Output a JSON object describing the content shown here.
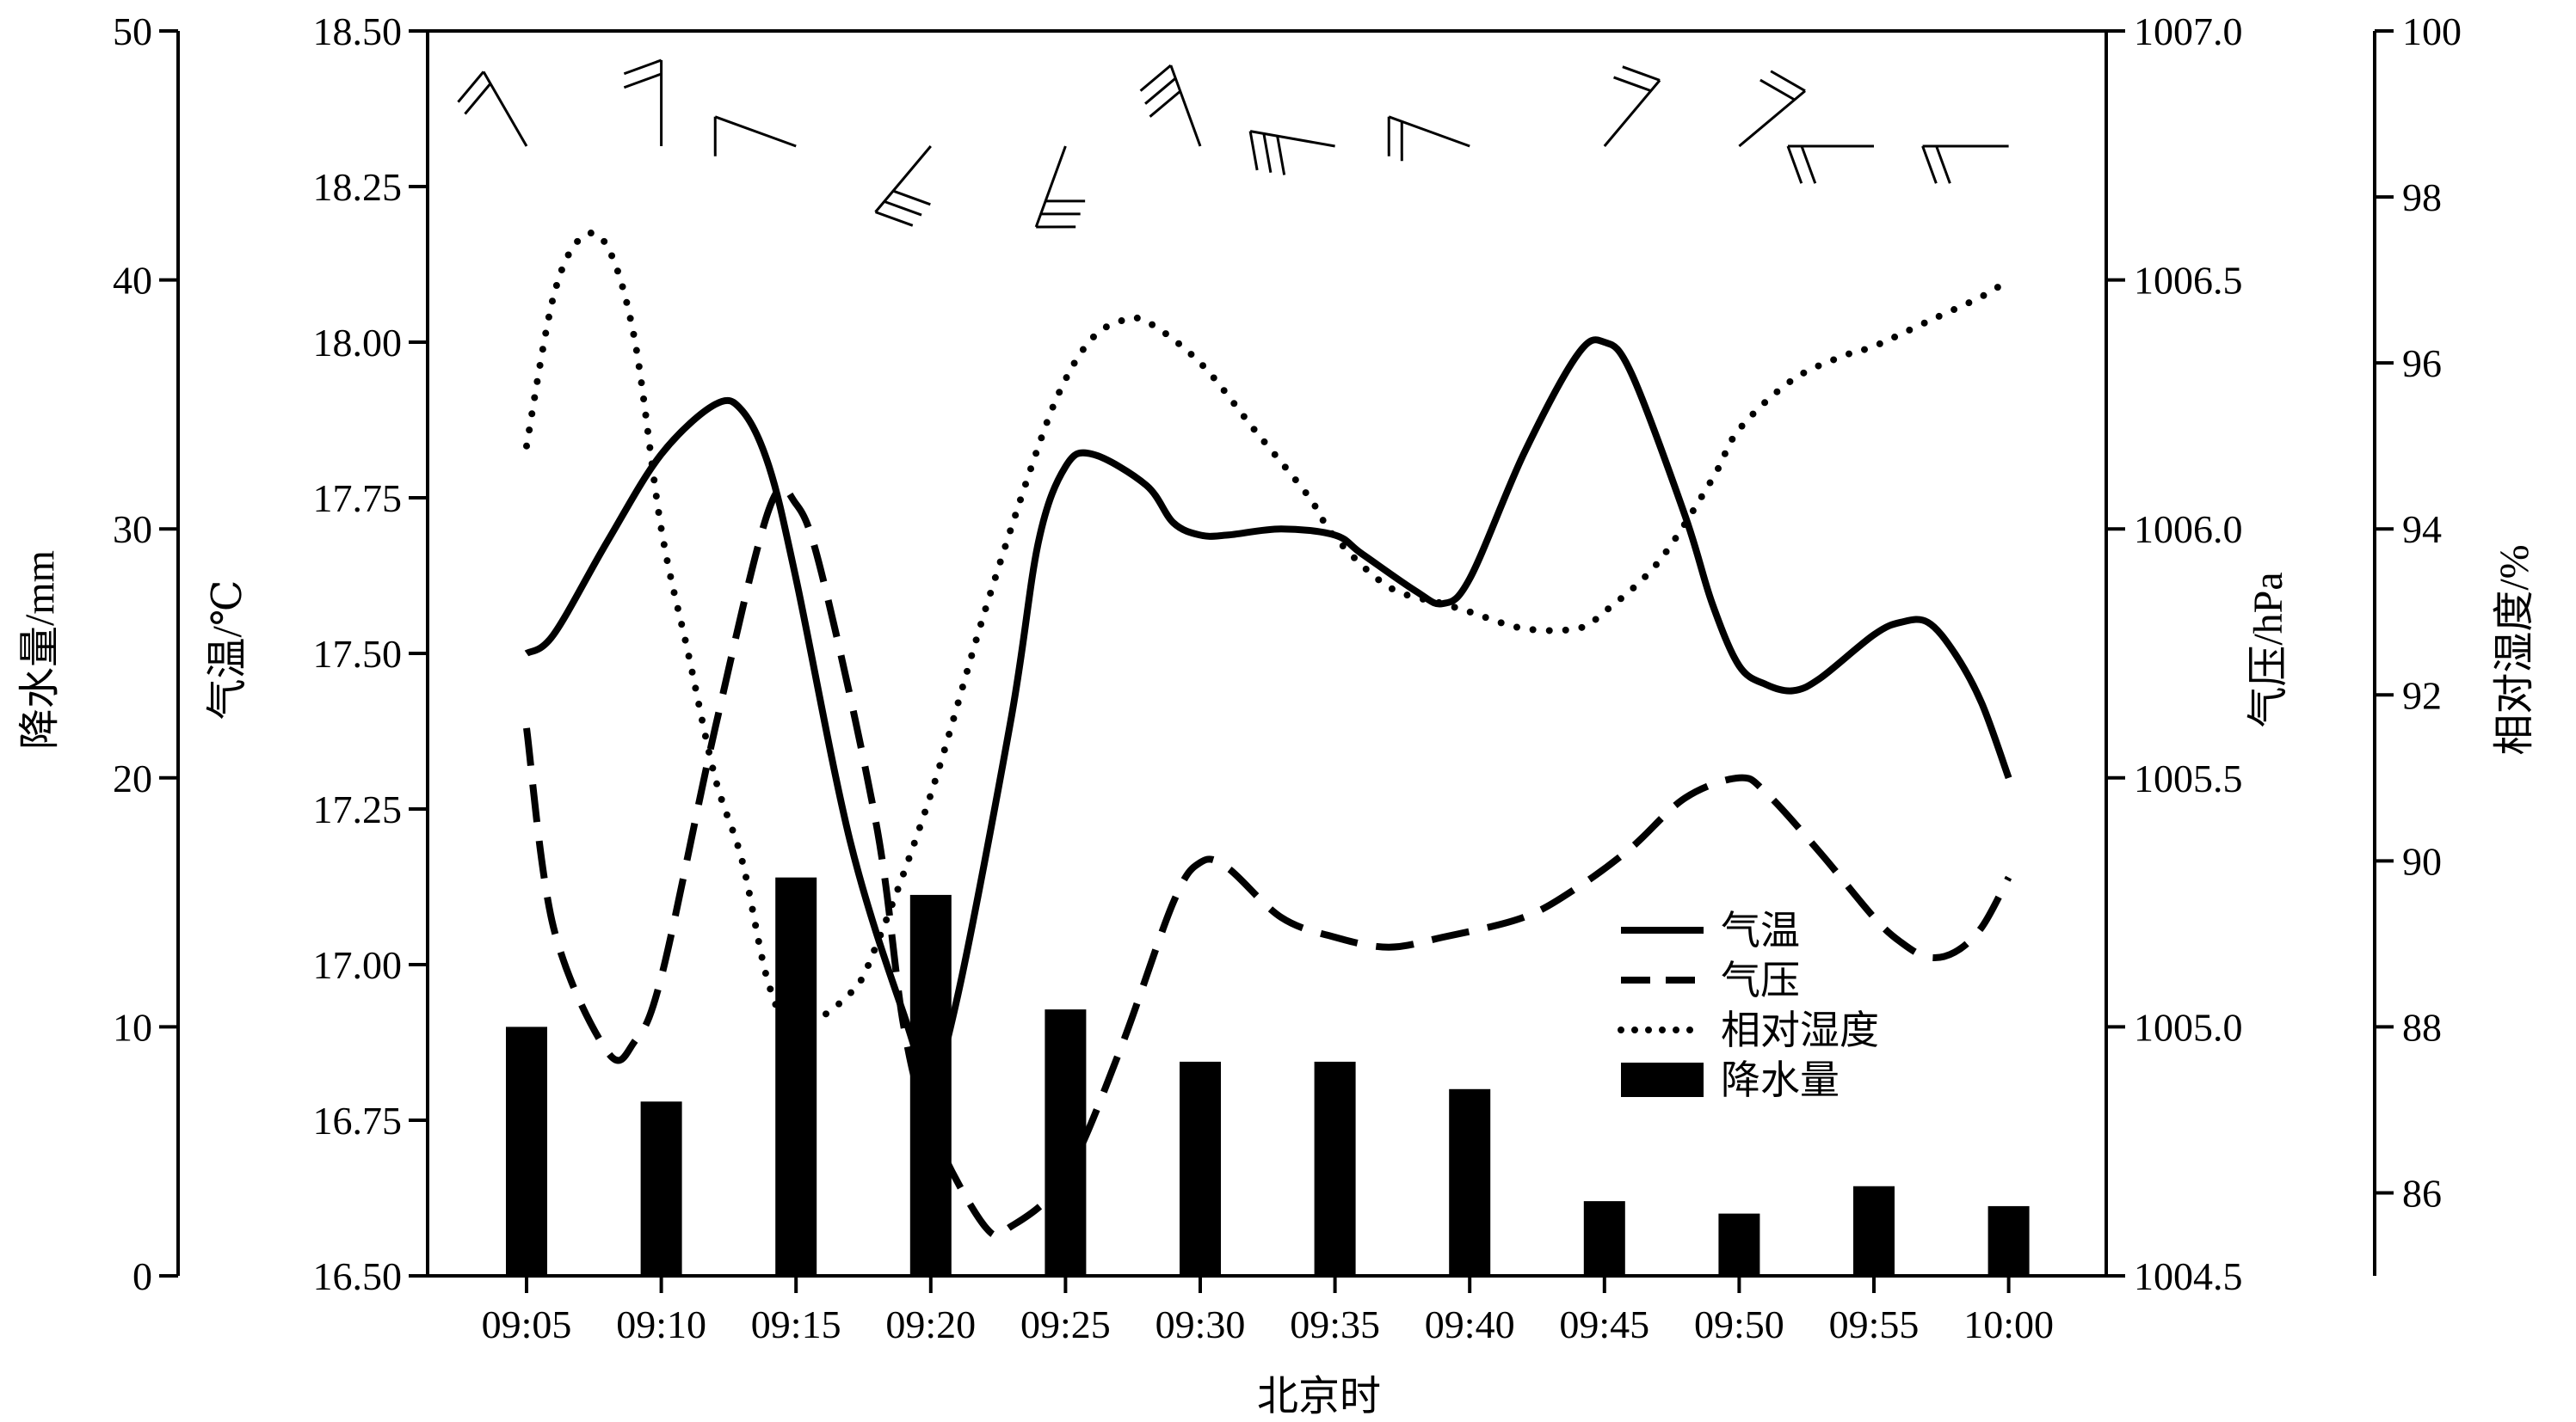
{
  "chart_data": {
    "type": "combo",
    "x": [
      "09:05",
      "09:10",
      "09:15",
      "09:20",
      "09:25",
      "09:30",
      "09:35",
      "09:40",
      "09:45",
      "09:50",
      "09:55",
      "10:00"
    ],
    "xlabel": "北京时",
    "axes": {
      "precip": {
        "label": "降水量/mm",
        "ticks": [
          "0",
          "10",
          "20",
          "30",
          "40",
          "50"
        ],
        "range": [
          0,
          50
        ]
      },
      "temperature": {
        "label": "气温/℃",
        "ticks": [
          "16.50",
          "16.75",
          "17.00",
          "17.25",
          "17.50",
          "17.75",
          "18.00",
          "18.25",
          "18.50"
        ],
        "range": [
          16.5,
          18.5
        ]
      },
      "pressure": {
        "label": "气压/hPa",
        "ticks": [
          "1004.5",
          "1005.0",
          "1005.5",
          "1006.0",
          "1006.5",
          "1007.0"
        ],
        "range": [
          1004.5,
          1007.0
        ]
      },
      "humidity": {
        "label": "相对湿度/%",
        "ticks": [
          "86",
          "88",
          "90",
          "92",
          "94",
          "96",
          "98",
          "100"
        ],
        "range": [
          85,
          100
        ]
      }
    },
    "series": [
      {
        "name": "气温",
        "kind": "line",
        "style": "solid",
        "axis": "temperature",
        "points": [
          [
            "09:05",
            17.5
          ],
          [
            "09:06",
            17.53
          ],
          [
            "09:08",
            17.68
          ],
          [
            "09:10",
            17.82
          ],
          [
            "09:12",
            17.9
          ],
          [
            "09:13",
            17.89
          ],
          [
            "09:14",
            17.8
          ],
          [
            "09:15",
            17.62
          ],
          [
            "09:17",
            17.2
          ],
          [
            "09:19",
            16.92
          ],
          [
            "09:20",
            16.82
          ],
          [
            "09:21",
            16.95
          ],
          [
            "09:23",
            17.4
          ],
          [
            "09:24",
            17.68
          ],
          [
            "09:25",
            17.8
          ],
          [
            "09:26",
            17.82
          ],
          [
            "09:28",
            17.77
          ],
          [
            "09:29",
            17.71
          ],
          [
            "09:30",
            17.69
          ],
          [
            "09:31",
            17.69
          ],
          [
            "09:33",
            17.7
          ],
          [
            "09:35",
            17.69
          ],
          [
            "09:36",
            17.66
          ],
          [
            "09:38",
            17.6
          ],
          [
            "09:39",
            17.58
          ],
          [
            "09:40",
            17.62
          ],
          [
            "09:42",
            17.82
          ],
          [
            "09:44",
            17.98
          ],
          [
            "09:45",
            18.0
          ],
          [
            "09:46",
            17.95
          ],
          [
            "09:48",
            17.72
          ],
          [
            "09:49",
            17.58
          ],
          [
            "09:50",
            17.48
          ],
          [
            "09:51",
            17.45
          ],
          [
            "09:52",
            17.44
          ],
          [
            "09:53",
            17.46
          ],
          [
            "09:55",
            17.53
          ],
          [
            "09:56",
            17.55
          ],
          [
            "09:57",
            17.55
          ],
          [
            "09:58",
            17.5
          ],
          [
            "09:59",
            17.42
          ],
          [
            "10:00",
            17.3
          ]
        ]
      },
      {
        "name": "气压",
        "kind": "line",
        "style": "dashed",
        "axis": "pressure",
        "points": [
          [
            "09:05",
            1005.6
          ],
          [
            "09:06",
            1005.2
          ],
          [
            "09:08",
            1004.95
          ],
          [
            "09:09",
            1004.97
          ],
          [
            "09:10",
            1005.1
          ],
          [
            "09:12",
            1005.6
          ],
          [
            "09:14",
            1006.04
          ],
          [
            "09:15",
            1006.05
          ],
          [
            "09:16",
            1005.9
          ],
          [
            "09:18",
            1005.4
          ],
          [
            "09:19",
            1005.0
          ],
          [
            "09:20",
            1004.8
          ],
          [
            "09:22",
            1004.6
          ],
          [
            "09:23",
            1004.6
          ],
          [
            "09:25",
            1004.7
          ],
          [
            "09:27",
            1004.95
          ],
          [
            "09:29",
            1005.25
          ],
          [
            "09:30",
            1005.33
          ],
          [
            "09:31",
            1005.32
          ],
          [
            "09:33",
            1005.22
          ],
          [
            "09:35",
            1005.18
          ],
          [
            "09:37",
            1005.16
          ],
          [
            "09:39",
            1005.18
          ],
          [
            "09:42",
            1005.22
          ],
          [
            "09:44",
            1005.28
          ],
          [
            "09:46",
            1005.36
          ],
          [
            "09:48",
            1005.46
          ],
          [
            "09:50",
            1005.5
          ],
          [
            "09:51",
            1005.47
          ],
          [
            "09:53",
            1005.35
          ],
          [
            "09:55",
            1005.22
          ],
          [
            "09:56",
            1005.17
          ],
          [
            "09:57",
            1005.14
          ],
          [
            "09:58",
            1005.15
          ],
          [
            "09:59",
            1005.2
          ],
          [
            "10:00",
            1005.3
          ]
        ]
      },
      {
        "name": "相对湿度",
        "kind": "line",
        "style": "dotted",
        "axis": "humidity",
        "points": [
          [
            "09:05",
            95.0
          ],
          [
            "09:06",
            96.8
          ],
          [
            "09:07",
            97.5
          ],
          [
            "09:08",
            97.4
          ],
          [
            "09:09",
            96.3
          ],
          [
            "09:10",
            94.0
          ],
          [
            "09:11",
            92.5
          ],
          [
            "09:12",
            91.0
          ],
          [
            "09:13",
            90.0
          ],
          [
            "09:14",
            88.5
          ],
          [
            "09:15",
            88.0
          ],
          [
            "09:17",
            88.4
          ],
          [
            "09:18",
            89.0
          ],
          [
            "09:20",
            90.8
          ],
          [
            "09:22",
            93.0
          ],
          [
            "09:24",
            95.0
          ],
          [
            "09:25",
            95.8
          ],
          [
            "09:26",
            96.3
          ],
          [
            "09:27",
            96.5
          ],
          [
            "09:28",
            96.5
          ],
          [
            "09:30",
            96.0
          ],
          [
            "09:32",
            95.2
          ],
          [
            "09:34",
            94.4
          ],
          [
            "09:35",
            93.9
          ],
          [
            "09:37",
            93.3
          ],
          [
            "09:39",
            93.1
          ],
          [
            "09:40",
            93.0
          ],
          [
            "09:42",
            92.8
          ],
          [
            "09:44",
            92.8
          ],
          [
            "09:45",
            93.0
          ],
          [
            "09:47",
            93.6
          ],
          [
            "09:49",
            94.6
          ],
          [
            "09:50",
            95.2
          ],
          [
            "09:52",
            95.8
          ],
          [
            "09:54",
            96.1
          ],
          [
            "09:55",
            96.2
          ],
          [
            "09:57",
            96.5
          ],
          [
            "09:59",
            96.8
          ],
          [
            "10:00",
            97.0
          ]
        ]
      },
      {
        "name": "降水量",
        "kind": "bar",
        "axis": "precip",
        "values": [
          10.0,
          7.0,
          16.0,
          15.3,
          10.7,
          8.6,
          8.6,
          7.5,
          3.0,
          2.5,
          3.6,
          2.8
        ]
      }
    ],
    "legend": {
      "position": "lower-center",
      "items": [
        {
          "label": "气温",
          "symbol": "solid-line"
        },
        {
          "label": "气压",
          "symbol": "dashed-line"
        },
        {
          "label": "相对湿度",
          "symbol": "dotted-line"
        },
        {
          "label": "降水量",
          "symbol": "filled-bar"
        }
      ]
    },
    "wind_barbs": [
      {
        "time": "09:05",
        "from_deg": 330,
        "barbs": 2
      },
      {
        "time": "09:10",
        "from_deg": 0,
        "barbs": 2
      },
      {
        "time": "09:15",
        "from_deg": 290,
        "barbs": 1
      },
      {
        "time": "09:20",
        "from_deg": 220,
        "barbs": 3
      },
      {
        "time": "09:25",
        "from_deg": 200,
        "barbs": 3
      },
      {
        "time": "09:30",
        "from_deg": 340,
        "barbs": 3
      },
      {
        "time": "09:35",
        "from_deg": 280,
        "barbs": 3
      },
      {
        "time": "09:40",
        "from_deg": 290,
        "barbs": 2
      },
      {
        "time": "09:45",
        "from_deg": 40,
        "barbs": 2
      },
      {
        "time": "09:50",
        "from_deg": 50,
        "barbs": 2
      },
      {
        "time": "09:55",
        "from_deg": 270,
        "barbs": 2
      },
      {
        "time": "10:00",
        "from_deg": 270,
        "barbs": 2
      }
    ]
  }
}
